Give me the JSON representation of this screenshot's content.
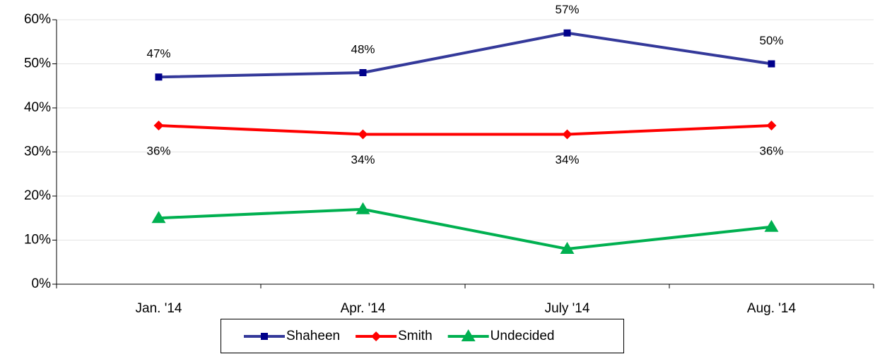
{
  "chart_data": {
    "type": "line",
    "categories": [
      "Jan. '14",
      "Apr. '14",
      "July '14",
      "Aug. '14"
    ],
    "series": [
      {
        "name": "Shaheen",
        "color": "#34399a",
        "marker": "square",
        "values": [
          47,
          48,
          57,
          50
        ],
        "value_labels": [
          "47%",
          "48%",
          "57%",
          "50%"
        ],
        "label_position": "above"
      },
      {
        "name": "Smith",
        "color": "#ff0000",
        "marker": "diamond",
        "values": [
          36,
          34,
          34,
          36
        ],
        "value_labels": [
          "36%",
          "34%",
          "34%",
          "36%"
        ],
        "label_position": "below"
      },
      {
        "name": "Undecided",
        "color": "#00b050",
        "marker": "triangle",
        "values": [
          15,
          17,
          8,
          13
        ]
      }
    ],
    "ylim": [
      0,
      60
    ],
    "yticks": [
      {
        "value": 0,
        "label": "0%"
      },
      {
        "value": 10,
        "label": "10%"
      },
      {
        "value": 20,
        "label": "20%"
      },
      {
        "value": 30,
        "label": "30%"
      },
      {
        "value": 40,
        "label": "40%"
      },
      {
        "value": 50,
        "label": "50%"
      },
      {
        "value": 60,
        "label": "60%"
      }
    ],
    "grid": true,
    "legend": "bottom"
  }
}
